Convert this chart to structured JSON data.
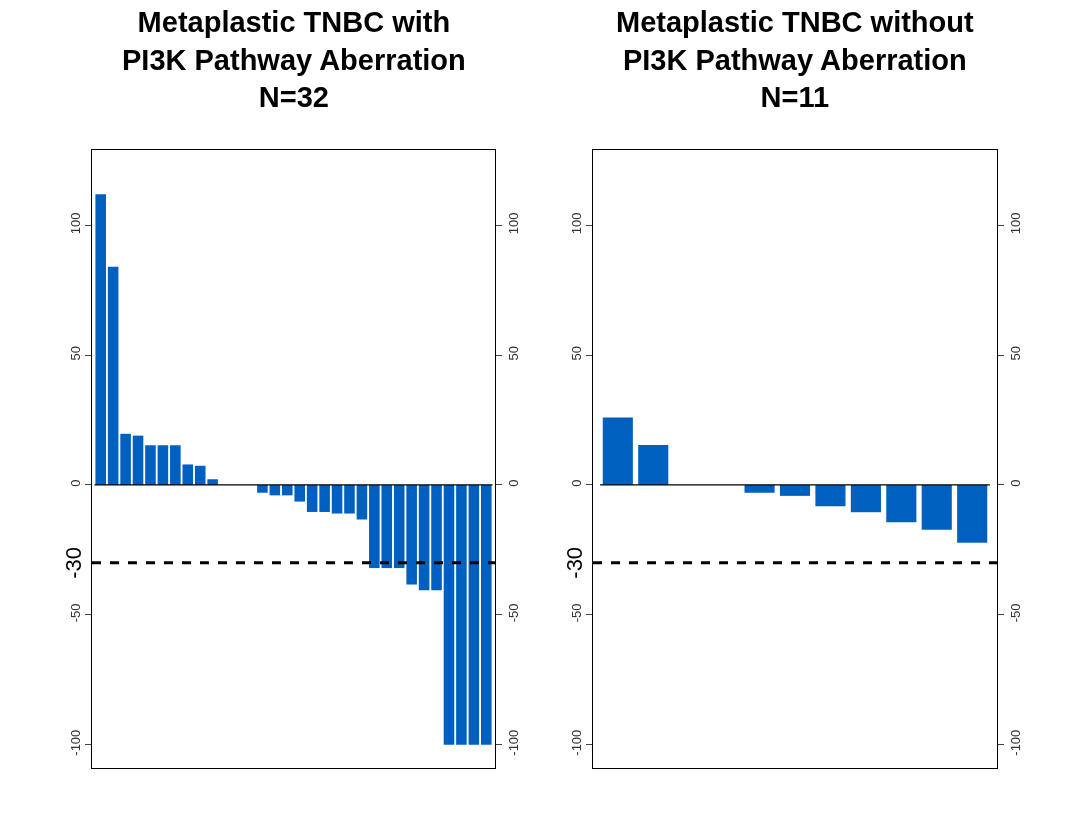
{
  "chart_data": [
    {
      "type": "bar",
      "title": "Metaplastic TNBC with\nPI3K Pathway Aberration\nN=32",
      "categories": [
        null,
        null,
        null,
        null,
        null,
        null,
        null,
        null,
        null,
        null,
        null,
        null,
        null,
        null,
        null,
        null,
        null,
        null,
        null,
        null,
        null,
        null,
        null,
        null,
        null,
        null,
        null,
        null,
        null,
        null,
        null,
        null
      ],
      "values": [
        112,
        84,
        19.7,
        19,
        15.3,
        15.3,
        15.3,
        7.9,
        7.4,
        2.2,
        0,
        0,
        0,
        -3,
        -4,
        -4,
        -6.4,
        -10.4,
        -10.4,
        -11,
        -11,
        -13.3,
        -32,
        -32,
        -32,
        -38.3,
        -40.5,
        -40.5,
        -100,
        -100,
        -100,
        -100
      ],
      "color": "#0060c0",
      "ylim": [
        -109,
        129
      ],
      "yticks": [
        -100,
        -50,
        0,
        50,
        100
      ],
      "y2lim": [
        -109,
        129
      ],
      "y2ticks": [
        -100,
        -50,
        0,
        50,
        100
      ],
      "ref_lines": [
        {
          "axis": "y",
          "value": -30,
          "label": "-30",
          "color": "#000000",
          "line_style": "dashed"
        },
        {
          "axis": "y",
          "value": 0,
          "color": "#000000",
          "line_style": "solid"
        }
      ],
      "legend": false,
      "tick_labels": "y"
    },
    {
      "type": "bar",
      "title": "Metaplastic TNBC without\nPI3K Pathway Aberration\nN=11",
      "categories": [
        null,
        null,
        null,
        null,
        null,
        null,
        null,
        null,
        null,
        null,
        null
      ],
      "values": [
        26,
        15.4,
        0,
        0,
        -3,
        -4.2,
        -8.2,
        -10.5,
        -14.4,
        -17.2,
        -22.3
      ],
      "color": "#0060c0",
      "ylim": [
        -109,
        129
      ],
      "yticks": [
        -100,
        -50,
        0,
        50,
        100
      ],
      "y2lim": [
        -109,
        129
      ],
      "y2ticks": [
        -100,
        -50,
        0,
        50,
        100
      ],
      "ref_lines": [
        {
          "axis": "y",
          "value": -30,
          "label": "-30",
          "color": "#000000",
          "line_style": "dashed"
        },
        {
          "axis": "y",
          "value": 0,
          "color": "#000000",
          "line_style": "solid"
        }
      ],
      "legend": false,
      "tick_labels": "y"
    }
  ]
}
